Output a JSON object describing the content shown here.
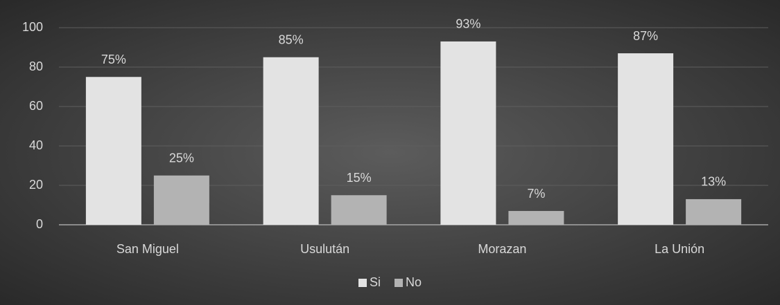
{
  "chart_data": {
    "type": "bar",
    "categories": [
      "San Miguel",
      "Usulután",
      "Morazan",
      "La Unión"
    ],
    "series": [
      {
        "name": "Si",
        "color": "#e3e3e3",
        "values": [
          75,
          85,
          93,
          87
        ],
        "value_labels": [
          "75%",
          "85%",
          "93%",
          "87%"
        ]
      },
      {
        "name": "No",
        "color": "#b3b3b3",
        "values": [
          25,
          15,
          7,
          13
        ],
        "value_labels": [
          "25%",
          "15%",
          "7%",
          "13%"
        ]
      }
    ],
    "ylim": [
      0,
      100
    ],
    "yticks": [
      0,
      20,
      40,
      60,
      80,
      100
    ],
    "grid": true,
    "legend": "bottom"
  }
}
